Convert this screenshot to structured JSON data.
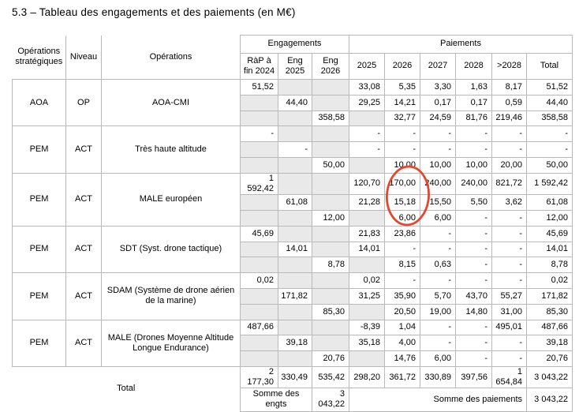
{
  "title": "5.3 – Tableau des engagements et des paiements (en M€)",
  "table": {
    "header": {
      "col_ops_strat": "Opérations stratégiques",
      "col_niveau": "Niveau",
      "col_operations": "Opérations",
      "group_engagements": "Engagements",
      "group_paiements": "Paiements",
      "eng_cols": [
        "RàP à fin 2024",
        "Eng 2025",
        "Eng 2026"
      ],
      "pay_cols": [
        "2025",
        "2026",
        "2027",
        "2028",
        ">2028",
        "Total"
      ]
    },
    "groups": [
      {
        "ops": "AOA",
        "niveau": "OP",
        "operation": "AOA-CMI",
        "rows": [
          {
            "eng": [
              "51,52",
              "",
              ""
            ],
            "pay": [
              "33,08",
              "5,35",
              "3,30",
              "1,63",
              "8,17",
              "51,52"
            ]
          },
          {
            "eng": [
              "",
              "44,40",
              ""
            ],
            "pay": [
              "29,25",
              "14,21",
              "0,17",
              "0,17",
              "0,59",
              "44,40"
            ]
          },
          {
            "eng": [
              "",
              "",
              "358,58"
            ],
            "pay": [
              "",
              "32,77",
              "24,59",
              "81,76",
              "219,46",
              "358,58"
            ]
          }
        ]
      },
      {
        "ops": "PEM",
        "niveau": "ACT",
        "operation": "Très haute altitude",
        "rows": [
          {
            "eng": [
              "-",
              "",
              ""
            ],
            "pay": [
              "-",
              "-",
              "-",
              "-",
              "-",
              "-"
            ]
          },
          {
            "eng": [
              "",
              "-",
              ""
            ],
            "pay": [
              "-",
              "-",
              "-",
              "-",
              "-",
              "-"
            ]
          },
          {
            "eng": [
              "",
              "",
              "50,00"
            ],
            "pay": [
              "",
              "10,00",
              "10,00",
              "10,00",
              "20,00",
              "50,00"
            ]
          }
        ]
      },
      {
        "ops": "PEM",
        "niveau": "ACT",
        "operation": "MALE européen",
        "rows": [
          {
            "eng": [
              "1 592,42",
              "",
              ""
            ],
            "pay": [
              "120,70",
              "170,00",
              "240,00",
              "240,00",
              "821,72",
              "1 592,42"
            ]
          },
          {
            "eng": [
              "",
              "61,08",
              ""
            ],
            "pay": [
              "21,28",
              "15,18",
              "15,50",
              "5,50",
              "3,62",
              "61,08"
            ]
          },
          {
            "eng": [
              "",
              "",
              "12,00"
            ],
            "pay": [
              "",
              "6,00",
              "6,00",
              "-",
              "-",
              "12,00"
            ]
          }
        ]
      },
      {
        "ops": "PEM",
        "niveau": "ACT",
        "operation": "SDT (Syst. drone tactique)",
        "rows": [
          {
            "eng": [
              "45,69",
              "",
              ""
            ],
            "pay": [
              "21,83",
              "23,86",
              "-",
              "-",
              "-",
              "45,69"
            ]
          },
          {
            "eng": [
              "",
              "14,01",
              ""
            ],
            "pay": [
              "14,01",
              "-",
              "-",
              "-",
              "-",
              "14,01"
            ]
          },
          {
            "eng": [
              "",
              "",
              "8,78"
            ],
            "pay": [
              "",
              "8,15",
              "0,63",
              "-",
              "-",
              "8,78"
            ]
          }
        ]
      },
      {
        "ops": "PEM",
        "niveau": "ACT",
        "operation": "SDAM (Système de drone aérien de la marine)",
        "rows": [
          {
            "eng": [
              "0,02",
              "",
              ""
            ],
            "pay": [
              "0,02",
              "-",
              "-",
              "-",
              "-",
              "0,02"
            ]
          },
          {
            "eng": [
              "",
              "171,82",
              ""
            ],
            "pay": [
              "31,25",
              "35,90",
              "5,70",
              "43,70",
              "55,27",
              "171,82"
            ]
          },
          {
            "eng": [
              "",
              "",
              "85,30"
            ],
            "pay": [
              "",
              "20,50",
              "19,00",
              "14,80",
              "31,00",
              "85,30"
            ]
          }
        ]
      },
      {
        "ops": "PEM",
        "niveau": "ACT",
        "operation": "MALE (Drones Moyenne Altitude Longue Endurance)",
        "rows": [
          {
            "eng": [
              "487,66",
              "",
              ""
            ],
            "pay": [
              "-8,39",
              "1,04",
              "-",
              "-",
              "495,01",
              "487,66"
            ]
          },
          {
            "eng": [
              "",
              "39,18",
              ""
            ],
            "pay": [
              "35,18",
              "4,00",
              "-",
              "-",
              "-",
              "39,18"
            ]
          },
          {
            "eng": [
              "",
              "",
              "20,76"
            ],
            "pay": [
              "",
              "14,76",
              "6,00",
              "-",
              "-",
              "20,76"
            ]
          }
        ]
      }
    ],
    "total": {
      "label": "Total",
      "eng": [
        "2 177,30",
        "330,49",
        "535,42"
      ],
      "pay": [
        "298,20",
        "361,72",
        "330,89",
        "397,56",
        "1 654,84",
        "3 043,22"
      ]
    },
    "footer": {
      "somme_engts_label": "Somme des engts",
      "somme_engts_value": "3 043,22",
      "somme_paiements_label": "Somme des paiements",
      "somme_paiements_value": "3 043,22"
    }
  },
  "annotation": {
    "shape": "hand-drawn ellipse around 2026 payments of MALE européen",
    "color": "#e5472c"
  }
}
